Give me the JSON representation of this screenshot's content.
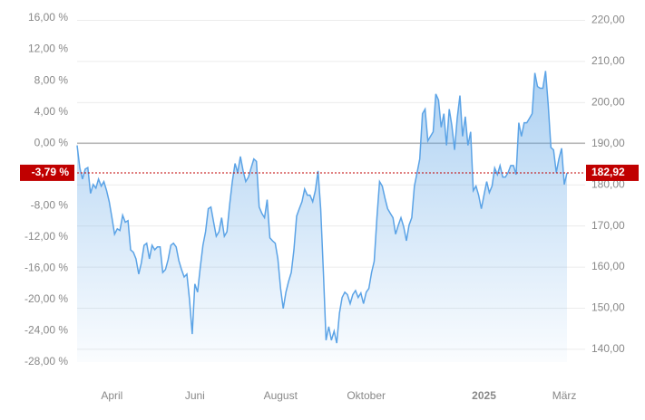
{
  "chart_data": {
    "type": "area",
    "categories": [
      null,
      null,
      null,
      null,
      null,
      null,
      null,
      null,
      null,
      null,
      null,
      null,
      null,
      "April",
      null,
      null,
      null,
      null,
      null,
      null,
      null,
      null,
      null,
      null,
      null,
      null,
      null,
      null,
      null,
      null,
      null,
      null,
      null,
      null,
      null,
      null,
      null,
      null,
      null,
      null,
      null,
      null,
      null,
      null,
      "Juni",
      null,
      null,
      null,
      null,
      null,
      null,
      null,
      null,
      null,
      null,
      null,
      null,
      null,
      null,
      null,
      null,
      null,
      null,
      null,
      null,
      null,
      null,
      null,
      null,
      null,
      null,
      null,
      null,
      null,
      null,
      null,
      "August",
      null,
      null,
      null,
      null,
      null,
      null,
      null,
      null,
      null,
      null,
      null,
      null,
      null,
      null,
      null,
      null,
      null,
      null,
      null,
      null,
      null,
      null,
      null,
      null,
      null,
      null,
      null,
      null,
      null,
      null,
      null,
      "Oktober",
      null,
      null,
      null,
      null,
      null,
      null,
      null,
      null,
      null,
      null,
      null,
      null,
      null,
      null,
      null,
      null,
      null,
      null,
      null,
      null,
      null,
      null,
      null,
      null,
      null,
      null,
      null,
      null,
      null,
      null,
      null,
      null,
      null,
      null,
      null,
      null,
      null,
      null,
      null,
      null,
      null,
      null,
      null,
      "2025",
      null,
      null,
      null,
      null,
      null,
      null,
      null,
      null,
      null,
      null,
      null,
      null,
      null,
      null,
      null,
      null,
      null,
      null,
      null,
      null,
      null,
      null,
      null,
      null,
      null,
      null,
      null,
      null,
      null,
      "März",
      null
    ],
    "series": [
      {
        "color": "#5ba3e6",
        "axis": "y2",
        "values": [
          189.6,
          184.1,
          181.4,
          183.8,
          184.2,
          177.9,
          180.1,
          179.2,
          181.4,
          179.7,
          180.8,
          178.6,
          175.9,
          172.0,
          168.0,
          169.3,
          168.9,
          172.6,
          170.9,
          171.3,
          164.2,
          163.6,
          162.0,
          158.3,
          161.0,
          165.3,
          165.8,
          162.0,
          165.3,
          164.2,
          164.9,
          164.9,
          158.7,
          159.4,
          161.8,
          165.3,
          165.8,
          164.9,
          161.6,
          159.4,
          157.6,
          158.3,
          152.1,
          143.7,
          155.9,
          153.9,
          159.8,
          165.3,
          168.6,
          174.2,
          174.6,
          170.9,
          167.5,
          168.6,
          172.0,
          167.5,
          168.6,
          175.3,
          180.8,
          185.2,
          183.0,
          186.9,
          183.4,
          180.8,
          181.9,
          184.1,
          186.3,
          185.7,
          174.6,
          173.1,
          172.0,
          176.4,
          167.1,
          166.4,
          165.8,
          162.0,
          154.8,
          149.9,
          153.9,
          156.5,
          158.7,
          164.2,
          172.4,
          174.2,
          175.9,
          179.0,
          177.5,
          177.5,
          175.9,
          178.6,
          183.4,
          174.2,
          158.7,
          142.2,
          145.5,
          142.2,
          144.4,
          141.5,
          148.8,
          152.6,
          153.9,
          153.3,
          151.1,
          153.3,
          154.3,
          152.6,
          153.7,
          151.1,
          153.9,
          154.8,
          158.7,
          161.4,
          172.0,
          180.8,
          179.7,
          176.8,
          174.2,
          173.1,
          172.0,
          168.0,
          170.2,
          172.0,
          169.8,
          166.4,
          170.2,
          172.0,
          179.7,
          183.0,
          186.3,
          197.3,
          198.4,
          190.7,
          191.8,
          192.9,
          202.1,
          200.6,
          194.0,
          197.3,
          189.6,
          198.4,
          194.4,
          188.5,
          196.2,
          201.7,
          191.8,
          196.6,
          189.6,
          192.9,
          178.6,
          179.7,
          177.5,
          174.2,
          177.5,
          180.8,
          178.1,
          179.7,
          184.1,
          182.5,
          184.7,
          181.9,
          181.9,
          183.0,
          184.7,
          184.7,
          182.5,
          195.1,
          191.8,
          195.1,
          195.1,
          196.2,
          197.3,
          207.2,
          203.9,
          203.5,
          203.5,
          207.7,
          199.5,
          189.1,
          188.5,
          183.0,
          186.3,
          188.9,
          180.1,
          182.92
        ]
      }
    ],
    "ylim": [
      -28,
      16
    ],
    "yticks": [
      {
        "value": 16,
        "label": "16,00 %"
      },
      {
        "value": 12,
        "label": "12,00 %"
      },
      {
        "value": 8,
        "label": "8,00 %"
      },
      {
        "value": 4,
        "label": "4,00 %"
      },
      {
        "value": 0,
        "label": "0,00 %"
      },
      {
        "value": -8,
        "label": "-8,00 %"
      },
      {
        "value": -12,
        "label": "-12,00 %"
      },
      {
        "value": -16,
        "label": "-16,00 %"
      },
      {
        "value": -20,
        "label": "-20,00 %"
      },
      {
        "value": -24,
        "label": "-24,00 %"
      },
      {
        "value": -28,
        "label": "-28,00 %"
      }
    ],
    "y2lim": [
      136.9,
      220.55
    ],
    "y2ticks": [
      {
        "value": 220,
        "label": "220,00"
      },
      {
        "value": 210,
        "label": "210,00"
      },
      {
        "value": 200,
        "label": "200,00"
      },
      {
        "value": 190,
        "label": "190,00"
      },
      {
        "value": 180,
        "label": "180,00"
      },
      {
        "value": 170,
        "label": "170,00"
      },
      {
        "value": 160,
        "label": "160,00"
      },
      {
        "value": 150,
        "label": "150,00"
      },
      {
        "value": 140,
        "label": "140,00"
      }
    ],
    "last_change": {
      "value": -3.79,
      "label": "-3,79 %"
    },
    "last_price": {
      "value": 182.92,
      "label": "182,92"
    },
    "marker_color": "#c00000",
    "grid": true
  }
}
